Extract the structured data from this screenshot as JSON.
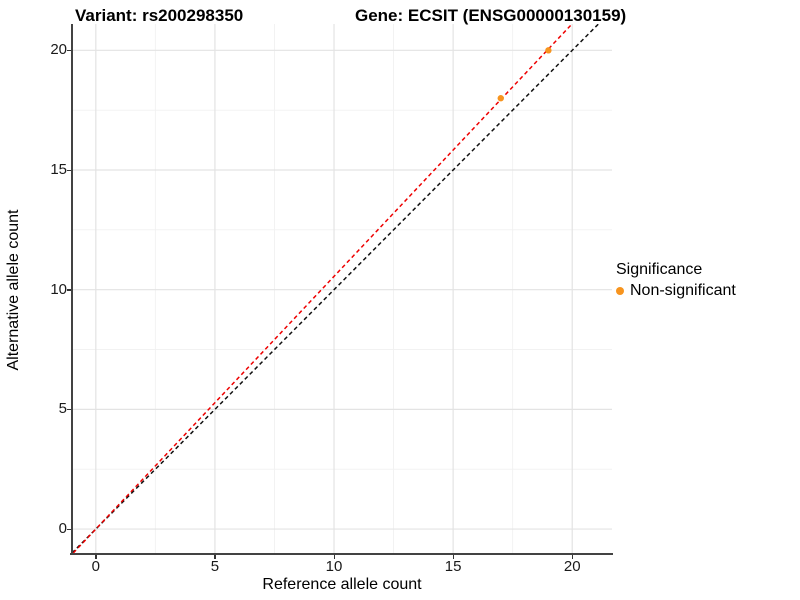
{
  "titles": {
    "variant": "Variant: rs200298350",
    "gene": "Gene: ECSIT (ENSG00000130159)"
  },
  "chart_data": {
    "type": "scatter",
    "title_left": "Variant: rs200298350",
    "title_right": "Gene: ECSIT (ENSG00000130159)",
    "xlabel": "Reference allele count",
    "ylabel": "Alternative allele count",
    "xlim": [
      -1,
      21.67
    ],
    "ylim": [
      -1,
      21.1
    ],
    "x_ticks": [
      0,
      5,
      10,
      15,
      20
    ],
    "y_ticks": [
      0,
      5,
      10,
      15,
      20
    ],
    "x_minor_gridlines": [
      2.5,
      7.5,
      12.5,
      17.5
    ],
    "y_minor_gridlines": [
      2.5,
      7.5,
      12.5,
      17.5
    ],
    "grid": "major and minor gridlines on white background",
    "series": [
      {
        "name": "Non-significant",
        "color": "#F7941E",
        "points": [
          {
            "x": 17,
            "y": 18
          },
          {
            "x": 19,
            "y": 20
          }
        ]
      }
    ],
    "reference_lines": [
      {
        "name": "identity-line",
        "slope": 1,
        "intercept": 0,
        "color": "#111111",
        "style": "dashed"
      },
      {
        "name": "allelic-ratio-line",
        "slope": 1.0556,
        "intercept": 0,
        "color": "#EE0000",
        "style": "dashed"
      }
    ],
    "legend": {
      "title": "Significance",
      "position": "right",
      "items": [
        {
          "label": "Non-significant",
          "color": "#F7941E"
        }
      ]
    }
  },
  "legend": {
    "title": "Significance",
    "item_label": "Non-significant"
  },
  "colors": {
    "point_orange": "#F7941E",
    "ratio_line_red": "#EE0000",
    "identity_line_black": "#111111",
    "grid_major": "#E3E3E3",
    "grid_minor": "#F1F1F1",
    "axis_line": "#434343"
  }
}
